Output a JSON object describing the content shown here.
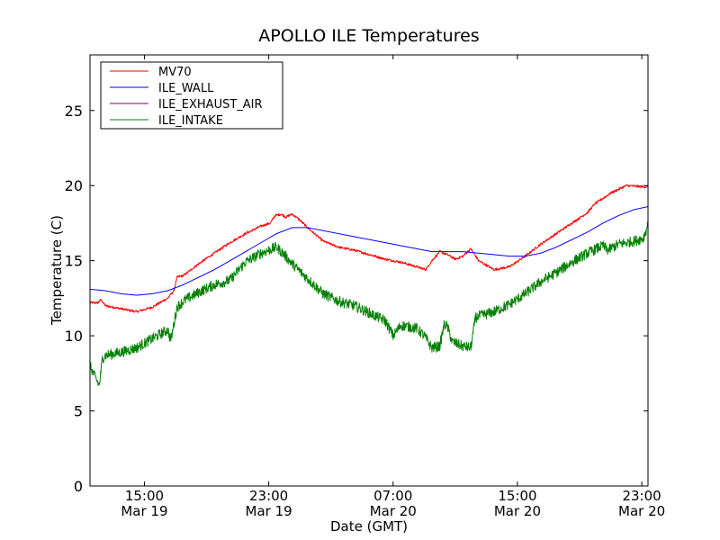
{
  "chart_data": {
    "type": "line",
    "title": "APOLLO ILE Temperatures",
    "xlabel": "Date (GMT)",
    "ylabel": "Temperature (C)",
    "x_unit": "hours since Mar 19 12:00 GMT",
    "xlim": [
      0,
      35.9
    ],
    "ylim": [
      0,
      28.7
    ],
    "yticks": [
      0,
      5,
      10,
      15,
      20,
      25
    ],
    "xticks": [
      {
        "x": 3.5,
        "label1": "15:00",
        "label2": "Mar 19"
      },
      {
        "x": 11.5,
        "label1": "23:00",
        "label2": "Mar 19"
      },
      {
        "x": 19.5,
        "label1": "07:00",
        "label2": "Mar 20"
      },
      {
        "x": 27.5,
        "label1": "15:00",
        "label2": "Mar 20"
      },
      {
        "x": 35.5,
        "label1": "23:00",
        "label2": "Mar 20"
      }
    ],
    "legend": "top-left",
    "grid": false,
    "series": [
      {
        "name": "MV70",
        "color": "#ff0000",
        "noise": 0.08,
        "points": [
          [
            0,
            12.2
          ],
          [
            0.5,
            12.2
          ],
          [
            0.7,
            12.4
          ],
          [
            1,
            12.0
          ],
          [
            2,
            11.8
          ],
          [
            3,
            11.6
          ],
          [
            4,
            11.9
          ],
          [
            5,
            12.5
          ],
          [
            5.4,
            13.0
          ],
          [
            5.6,
            13.9
          ],
          [
            6,
            14.0
          ],
          [
            7,
            14.8
          ],
          [
            8,
            15.5
          ],
          [
            9,
            16.2
          ],
          [
            10,
            16.8
          ],
          [
            11,
            17.3
          ],
          [
            11.6,
            17.5
          ],
          [
            11.9,
            18.0
          ],
          [
            12.3,
            18.1
          ],
          [
            12.6,
            17.9
          ],
          [
            13,
            18.1
          ],
          [
            13.4,
            17.8
          ],
          [
            14,
            17.2
          ],
          [
            15,
            16.3
          ],
          [
            16,
            15.9
          ],
          [
            17,
            15.7
          ],
          [
            18,
            15.4
          ],
          [
            19,
            15.1
          ],
          [
            20,
            14.9
          ],
          [
            21,
            14.6
          ],
          [
            21.6,
            14.4
          ],
          [
            22,
            15.0
          ],
          [
            22.5,
            15.6
          ],
          [
            23,
            15.4
          ],
          [
            23.5,
            15.1
          ],
          [
            24,
            15.3
          ],
          [
            24.5,
            15.8
          ],
          [
            25,
            15.0
          ],
          [
            26,
            14.4
          ],
          [
            27,
            14.6
          ],
          [
            28,
            15.3
          ],
          [
            29,
            16.1
          ],
          [
            30,
            16.8
          ],
          [
            31,
            17.5
          ],
          [
            32,
            18.2
          ],
          [
            32.5,
            18.8
          ],
          [
            33.5,
            19.5
          ],
          [
            34.5,
            20.0
          ],
          [
            35.9,
            19.9
          ]
        ]
      },
      {
        "name": "ILE_WALL",
        "color": "#0000ff",
        "noise": 0.0,
        "points": [
          [
            0,
            13.1
          ],
          [
            1,
            13.0
          ],
          [
            2,
            12.8
          ],
          [
            3,
            12.7
          ],
          [
            4,
            12.8
          ],
          [
            5,
            13.0
          ],
          [
            6,
            13.4
          ],
          [
            7,
            13.9
          ],
          [
            8,
            14.4
          ],
          [
            9,
            15.0
          ],
          [
            10,
            15.6
          ],
          [
            11,
            16.2
          ],
          [
            12,
            16.8
          ],
          [
            13,
            17.2
          ],
          [
            14,
            17.2
          ],
          [
            15,
            17.0
          ],
          [
            16,
            16.8
          ],
          [
            17,
            16.6
          ],
          [
            18,
            16.4
          ],
          [
            19,
            16.2
          ],
          [
            20,
            16.0
          ],
          [
            21,
            15.8
          ],
          [
            22,
            15.6
          ],
          [
            23,
            15.6
          ],
          [
            24,
            15.6
          ],
          [
            25,
            15.5
          ],
          [
            26,
            15.4
          ],
          [
            27,
            15.3
          ],
          [
            28,
            15.3
          ],
          [
            29,
            15.5
          ],
          [
            30,
            15.9
          ],
          [
            31,
            16.4
          ],
          [
            32,
            16.9
          ],
          [
            33,
            17.5
          ],
          [
            34,
            18.0
          ],
          [
            35,
            18.4
          ],
          [
            35.9,
            18.6
          ]
        ]
      },
      {
        "name": "ILE_EXHAUST_AIR",
        "color": "#800080",
        "noise": 0.0,
        "points": []
      },
      {
        "name": "ILE_INTAKE",
        "color": "#008000",
        "noise": 0.35,
        "points": [
          [
            0,
            8.0
          ],
          [
            0.3,
            7.3
          ],
          [
            0.6,
            6.7
          ],
          [
            0.8,
            8.5
          ],
          [
            1,
            8.7
          ],
          [
            2,
            8.9
          ],
          [
            3,
            9.2
          ],
          [
            4,
            9.8
          ],
          [
            5,
            10.4
          ],
          [
            5.2,
            9.7
          ],
          [
            5.6,
            11.9
          ],
          [
            6,
            12.3
          ],
          [
            7,
            12.9
          ],
          [
            8,
            13.4
          ],
          [
            9,
            13.7
          ],
          [
            10,
            14.9
          ],
          [
            11,
            15.5
          ],
          [
            12,
            15.9
          ],
          [
            12.5,
            15.4
          ],
          [
            13,
            14.8
          ],
          [
            14,
            13.8
          ],
          [
            15,
            12.8
          ],
          [
            16,
            12.3
          ],
          [
            17,
            12.0
          ],
          [
            18,
            11.5
          ],
          [
            19,
            11.0
          ],
          [
            19.5,
            10.0
          ],
          [
            20,
            10.7
          ],
          [
            21,
            10.5
          ],
          [
            21.5,
            10.0
          ],
          [
            22,
            9.2
          ],
          [
            22.5,
            9.3
          ],
          [
            22.8,
            10.8
          ],
          [
            23,
            10.6
          ],
          [
            23.3,
            9.6
          ],
          [
            24,
            9.3
          ],
          [
            24.5,
            9.2
          ],
          [
            24.8,
            11.2
          ],
          [
            25,
            11.3
          ],
          [
            26,
            11.6
          ],
          [
            27,
            12.1
          ],
          [
            28,
            12.8
          ],
          [
            29,
            13.6
          ],
          [
            30,
            14.2
          ],
          [
            31,
            14.9
          ],
          [
            32,
            15.5
          ],
          [
            33,
            16.0
          ],
          [
            33.3,
            15.7
          ],
          [
            34,
            16.1
          ],
          [
            35,
            16.3
          ],
          [
            35.6,
            16.5
          ],
          [
            35.9,
            17.4
          ]
        ]
      }
    ]
  }
}
